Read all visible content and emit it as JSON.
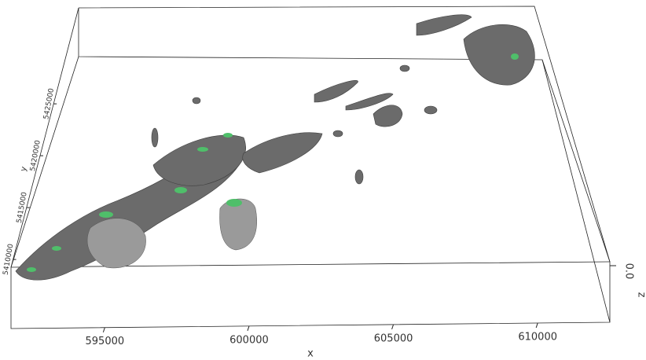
{
  "chart_data": {
    "type": "isosurface3d",
    "xlabel": "x",
    "ylabel": "y",
    "zlabel": "z",
    "xlim": [
      591750,
      612500
    ],
    "xticks": [
      595000,
      600000,
      605000,
      610000
    ],
    "yticks": [
      5410000,
      5415000,
      5420000,
      5425000
    ],
    "zticks": [
      {
        "value": 0,
        "label": "0.0"
      }
    ]
  }
}
